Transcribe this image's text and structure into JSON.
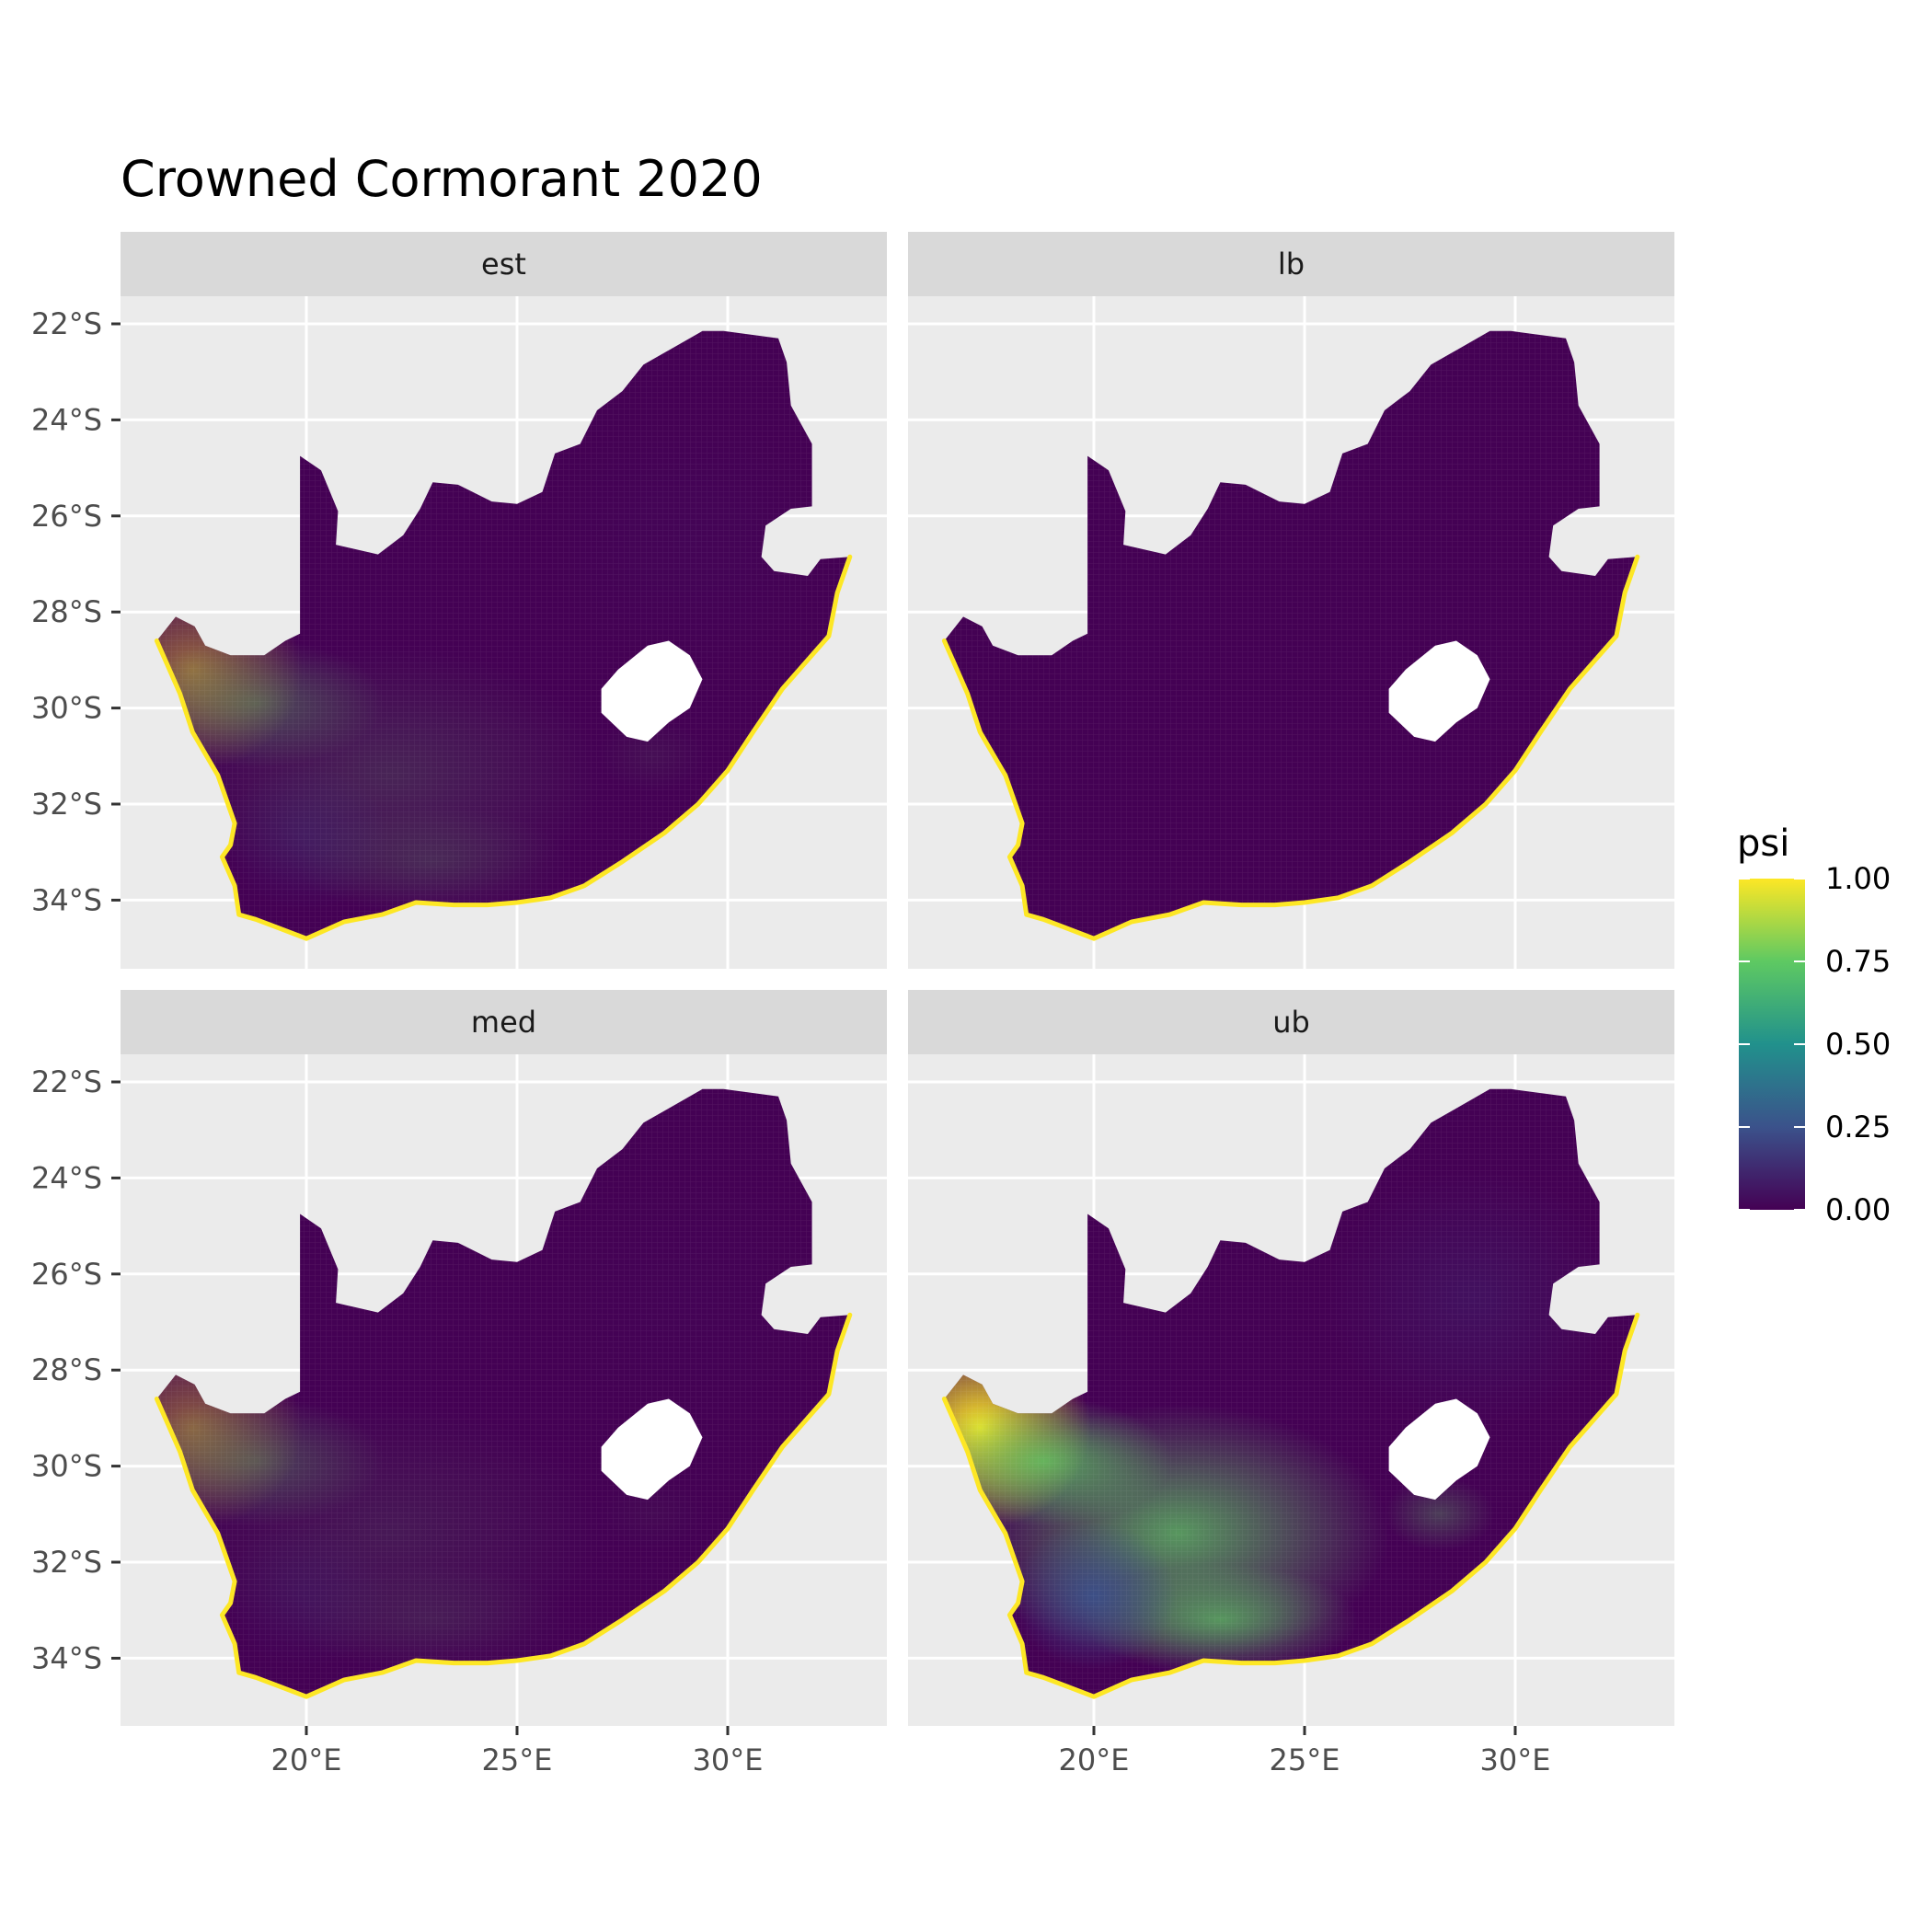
{
  "title": "Crowned Cormorant 2020",
  "facets": [
    {
      "label": "est",
      "intensity": {
        "west_coast": 0.45,
        "interior": 0.18,
        "east_coast": 0.05,
        "coast_rim": 1.0
      }
    },
    {
      "label": "lb",
      "intensity": {
        "west_coast": 0.0,
        "interior": 0.0,
        "east_coast": 0.0,
        "coast_rim": 1.0
      }
    },
    {
      "label": "med",
      "intensity": {
        "west_coast": 0.4,
        "interior": 0.12,
        "east_coast": 0.03,
        "coast_rim": 1.0
      }
    },
    {
      "label": "ub",
      "intensity": {
        "west_coast": 1.0,
        "interior": 0.75,
        "east_coast": 0.2,
        "coast_rim": 1.0
      }
    }
  ],
  "axes": {
    "x_ticks": [
      "20°E",
      "25°E",
      "30°E"
    ],
    "x_values": [
      20,
      25,
      30
    ],
    "y_ticks": [
      "22°S",
      "24°S",
      "26°S",
      "28°S",
      "30°S",
      "32°S",
      "34°S"
    ],
    "y_values": [
      -22,
      -24,
      -26,
      -28,
      -30,
      -32,
      -34
    ],
    "xlim": [
      15.6,
      33.8
    ],
    "ylim": [
      -35.5,
      -21.4
    ]
  },
  "legend": {
    "title": "psi",
    "labels": [
      "1.00",
      "0.75",
      "0.50",
      "0.25",
      "0.00"
    ],
    "values": [
      1.0,
      0.75,
      0.5,
      0.25,
      0.0
    ],
    "colors": [
      "#fde725",
      "#5ec962",
      "#21918c",
      "#3b528b",
      "#440154"
    ]
  },
  "colors": {
    "panel_bg": "#ebebeb",
    "strip_bg": "#d9d9d9",
    "grid": "#ffffff",
    "low": "#440154",
    "high": "#fde725"
  }
}
